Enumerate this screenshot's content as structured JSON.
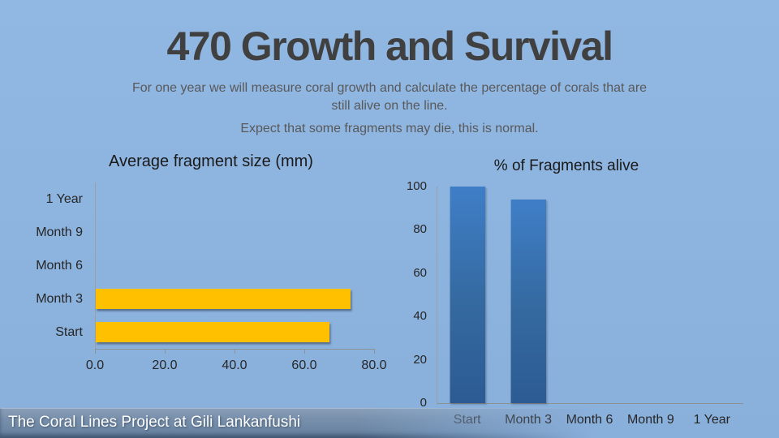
{
  "slide": {
    "title": "470 Growth and Survival",
    "subtitle": {
      "line1": "For one year we will measure coral growth and calculate the percentage of corals that are",
      "line2": "still alive on the line.",
      "line3": "Expect that some fragments may die, this is normal."
    },
    "footer": "The Coral Lines Project at Gili Lankanfushi"
  },
  "colors": {
    "background_top": "#91B7E3",
    "background_bottom": "#89AFDB",
    "title_text": "#404040",
    "subtitle_text": "#595959",
    "axis_line": "#8C9196",
    "tick_text": "#262626",
    "orange_bar": "#FFC000",
    "blue_bar_top": "#3F7EC7",
    "blue_bar_bottom": "#2C5B93",
    "footer_text": "#FFFFFF"
  },
  "chart_data": [
    {
      "id": "avg-fragment-size",
      "type": "bar",
      "orientation": "horizontal",
      "title": "Average fragment size (mm)",
      "categories": [
        "1 Year",
        "Month 9",
        "Month 6",
        "Month 3",
        "Start"
      ],
      "values": [
        0,
        0,
        0,
        73,
        67
      ],
      "xlabel": "",
      "ylabel": "",
      "xlim": [
        0,
        80
      ],
      "xticks": [
        "0.0",
        "20.0",
        "40.0",
        "60.0",
        "80.0"
      ],
      "grid": false,
      "legend": false,
      "bar_color": "#FFC000"
    },
    {
      "id": "pct-fragments-alive",
      "type": "bar",
      "orientation": "vertical",
      "title": "% of Fragments alive",
      "categories": [
        "Start",
        "Month 3",
        "Month 6",
        "Month 9",
        "1 Year"
      ],
      "values": [
        100,
        94,
        0,
        0,
        0
      ],
      "xlabel": "",
      "ylabel": "",
      "ylim": [
        0,
        100
      ],
      "yticks": [
        "0",
        "20",
        "40",
        "60",
        "80",
        "100"
      ],
      "grid": false,
      "legend": false,
      "bar_color_top": "#3F7EC7",
      "bar_color_bottom": "#2C5B93"
    }
  ]
}
